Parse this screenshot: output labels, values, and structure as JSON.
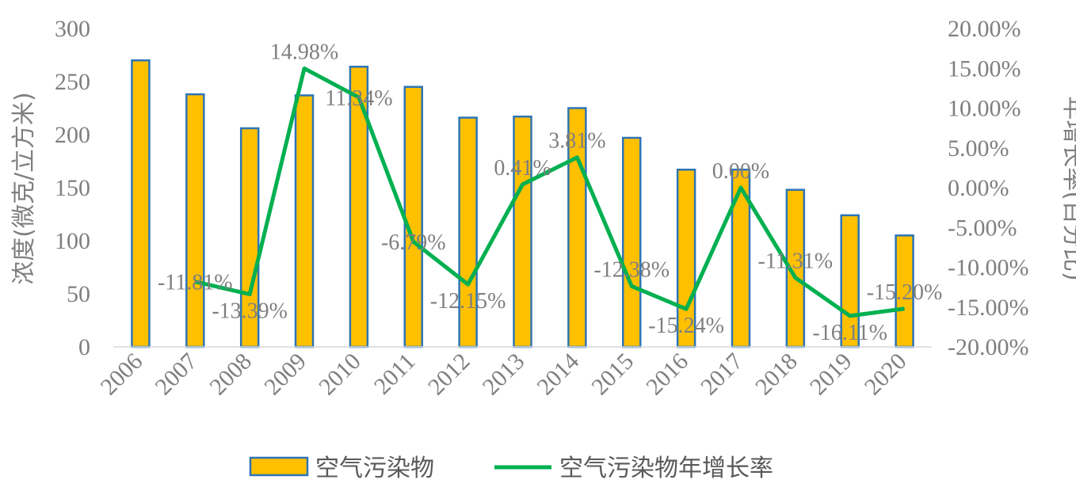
{
  "chart_data": {
    "type": "bar",
    "categories": [
      "2006",
      "2007",
      "2008",
      "2009",
      "2010",
      "2011",
      "2012",
      "2013",
      "2014",
      "2015",
      "2016",
      "2017",
      "2018",
      "2019",
      "2020"
    ],
    "series": [
      {
        "name": "空气污染物",
        "type": "bar",
        "axis": "left",
        "values": [
          270,
          238,
          206,
          237,
          264,
          245,
          216,
          217,
          225,
          197,
          167,
          167,
          148,
          124,
          105
        ]
      },
      {
        "name": "空气污染物年增长率",
        "type": "line",
        "axis": "right",
        "values": [
          null,
          -11.81,
          -13.39,
          14.98,
          11.34,
          -6.79,
          -12.15,
          0.41,
          3.81,
          -12.38,
          -15.24,
          0.0,
          -11.31,
          -16.11,
          -15.2
        ],
        "labels": [
          "",
          "-11.81%",
          "-13.39%",
          "14.98%",
          "11.34%",
          "-6.79%",
          "-12.15%",
          "0.41%",
          "3.81%",
          "-12.38%",
          "-15.24%",
          "0.00%",
          "-11.31%",
          "-16.11%",
          "-15.20%"
        ]
      }
    ],
    "ylabel": "浓度(微克/立方米)",
    "y2label": "年增长率(百分比)",
    "ylim": [
      0,
      300
    ],
    "y2lim": [
      -20,
      20
    ],
    "yticks": [
      "0",
      "50",
      "100",
      "150",
      "200",
      "250",
      "300"
    ],
    "y2ticks": [
      "-20.00%",
      "-15.00%",
      "-10.00%",
      "-5.00%",
      "0.00%",
      "5.00%",
      "10.00%",
      "15.00%",
      "20.00%"
    ],
    "legend_position": "bottom",
    "grid": false,
    "colors": {
      "bar_fill": "#ffc000",
      "bar_edge": "#2e75b6",
      "line": "#00b050",
      "text": "#7f7f7f"
    }
  }
}
